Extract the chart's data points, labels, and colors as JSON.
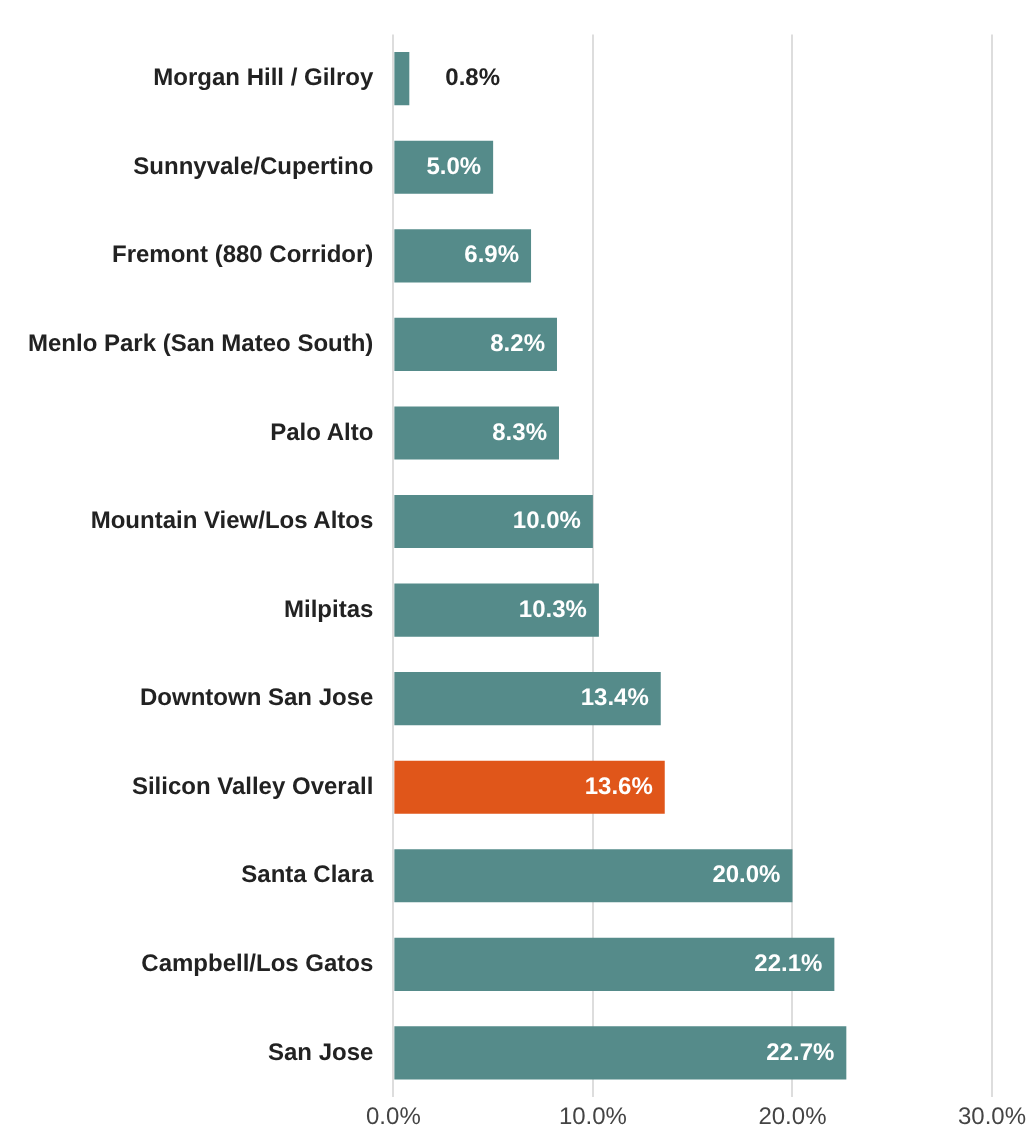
{
  "chart_data": {
    "type": "bar",
    "orientation": "horizontal",
    "categories": [
      "Morgan Hill / Gilroy",
      "Sunnyvale/Cupertino",
      "Fremont (880 Corridor)",
      "Menlo Park (San Mateo South)",
      "Palo Alto",
      "Mountain View/Los Altos",
      "Milpitas",
      "Downtown San Jose",
      "Silicon Valley Overall",
      "Santa Clara",
      "Campbell/Los Gatos",
      "San Jose"
    ],
    "values": [
      0.8,
      5.0,
      6.9,
      8.2,
      8.3,
      10.0,
      10.3,
      13.4,
      13.6,
      20.0,
      22.1,
      22.7
    ],
    "colors": [
      "#558b8a",
      "#558b8a",
      "#558b8a",
      "#558b8a",
      "#558b8a",
      "#558b8a",
      "#558b8a",
      "#558b8a",
      "#e0561a",
      "#558b8a",
      "#558b8a",
      "#558b8a"
    ],
    "value_labels": [
      "0.8%",
      "5.0%",
      "6.9%",
      "8.2%",
      "8.3%",
      "10.0%",
      "10.3%",
      "13.4%",
      "13.6%",
      "20.0%",
      "22.1%",
      "22.7%"
    ],
    "xlim": [
      0,
      30
    ],
    "xticks": [
      {
        "value": 0,
        "label": "0.0%"
      },
      {
        "value": 10,
        "label": "10.0%"
      },
      {
        "value": 20,
        "label": "20.0%"
      },
      {
        "value": 30,
        "label": "30.0%"
      }
    ],
    "grid": "x",
    "legend": false
  }
}
